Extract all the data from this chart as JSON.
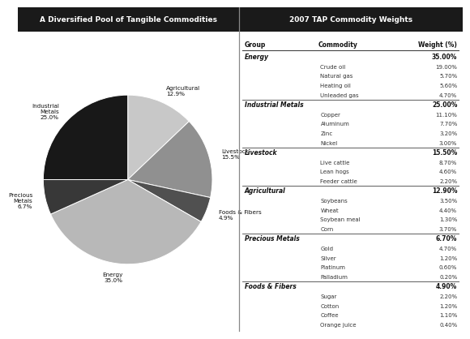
{
  "left_title": "A Diversified Pool of Tangible Commodities",
  "right_title": "2007 TAP Commodity Weights",
  "title_bg": "#1a1a1a",
  "title_fg": "#ffffff",
  "pie_labels": [
    "Agricultural\n12.9%",
    "Livestock\n15.5%",
    "Foods & Fibers\n4.9%",
    "Energy\n35.0%",
    "Precious\nMetals\n6.7%",
    "Industrial\nMetals\n25.0%"
  ],
  "pie_sizes": [
    12.9,
    15.5,
    4.9,
    35.0,
    6.7,
    25.0
  ],
  "pie_colors": [
    "#c8c8c8",
    "#909090",
    "#505050",
    "#b8b8b8",
    "#383838",
    "#181818"
  ],
  "table_header": [
    "Group",
    "Commodity",
    "Weight (%)"
  ],
  "table_data": [
    [
      "Energy",
      "",
      "35.00%"
    ],
    [
      "",
      "Crude oil",
      "19.00%"
    ],
    [
      "",
      "Natural gas",
      "5.70%"
    ],
    [
      "",
      "Heating oil",
      "5.60%"
    ],
    [
      "",
      "Unleaded gas",
      "4.70%"
    ],
    [
      "Industrial Metals",
      "",
      "25.00%"
    ],
    [
      "",
      "Copper",
      "11.10%"
    ],
    [
      "",
      "Aluminum",
      "7.70%"
    ],
    [
      "",
      "Zinc",
      "3.20%"
    ],
    [
      "",
      "Nickel",
      "3.00%"
    ],
    [
      "Livestock",
      "",
      "15.50%"
    ],
    [
      "",
      "Live cattle",
      "8.70%"
    ],
    [
      "",
      "Lean hogs",
      "4.60%"
    ],
    [
      "",
      "Feeder cattle",
      "2.20%"
    ],
    [
      "Agricultural",
      "",
      "12.90%"
    ],
    [
      "",
      "Soybeans",
      "3.50%"
    ],
    [
      "",
      "Wheat",
      "4.40%"
    ],
    [
      "",
      "Soybean meal",
      "1.30%"
    ],
    [
      "",
      "Corn",
      "3.70%"
    ],
    [
      "Precious Metals",
      "",
      "6.70%"
    ],
    [
      "",
      "Gold",
      "4.70%"
    ],
    [
      "",
      "Silver",
      "1.20%"
    ],
    [
      "",
      "Platinum",
      "0.60%"
    ],
    [
      "",
      "Palladium",
      "0.20%"
    ],
    [
      "Foods & Fibers",
      "",
      "4.90%"
    ],
    [
      "",
      "Sugar",
      "2.20%"
    ],
    [
      "",
      "Cotton",
      "1.20%"
    ],
    [
      "",
      "Coffee",
      "1.10%"
    ],
    [
      "",
      "Orange juice",
      "0.40%"
    ]
  ],
  "group_rows": [
    0,
    5,
    10,
    14,
    19,
    24
  ],
  "separator_before_rows": [
    5,
    10,
    14,
    19,
    24
  ]
}
